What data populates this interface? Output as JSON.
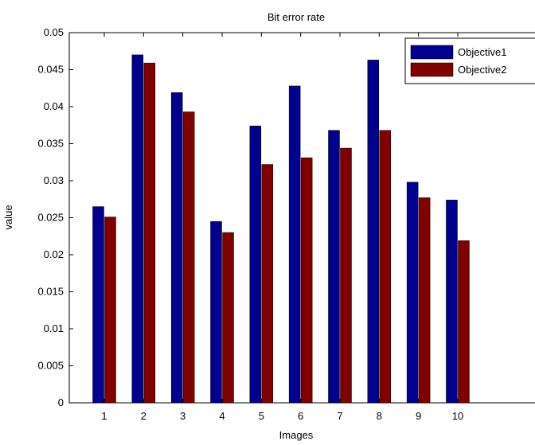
{
  "chart_data": {
    "type": "bar",
    "title": "Bit error rate",
    "xlabel": "Images",
    "ylabel": "value",
    "categories": [
      "1",
      "2",
      "3",
      "4",
      "5",
      "6",
      "7",
      "8",
      "9",
      "10"
    ],
    "series": [
      {
        "name": "Objective1",
        "color": "#00008f",
        "values": [
          0.0265,
          0.047,
          0.0419,
          0.0245,
          0.0374,
          0.0428,
          0.0368,
          0.0463,
          0.0298,
          0.0274
        ]
      },
      {
        "name": "Objective2",
        "color": "#800000",
        "values": [
          0.0251,
          0.0459,
          0.0393,
          0.023,
          0.0322,
          0.0331,
          0.0344,
          0.0368,
          0.0277,
          0.0219
        ]
      }
    ],
    "ylim": [
      0,
      0.05
    ],
    "yticks": [
      "0",
      "0.005",
      "0.01",
      "0.015",
      "0.02",
      "0.025",
      "0.03",
      "0.035",
      "0.04",
      "0.045",
      "0.05"
    ],
    "grid": false,
    "legend_position": "top-right"
  }
}
